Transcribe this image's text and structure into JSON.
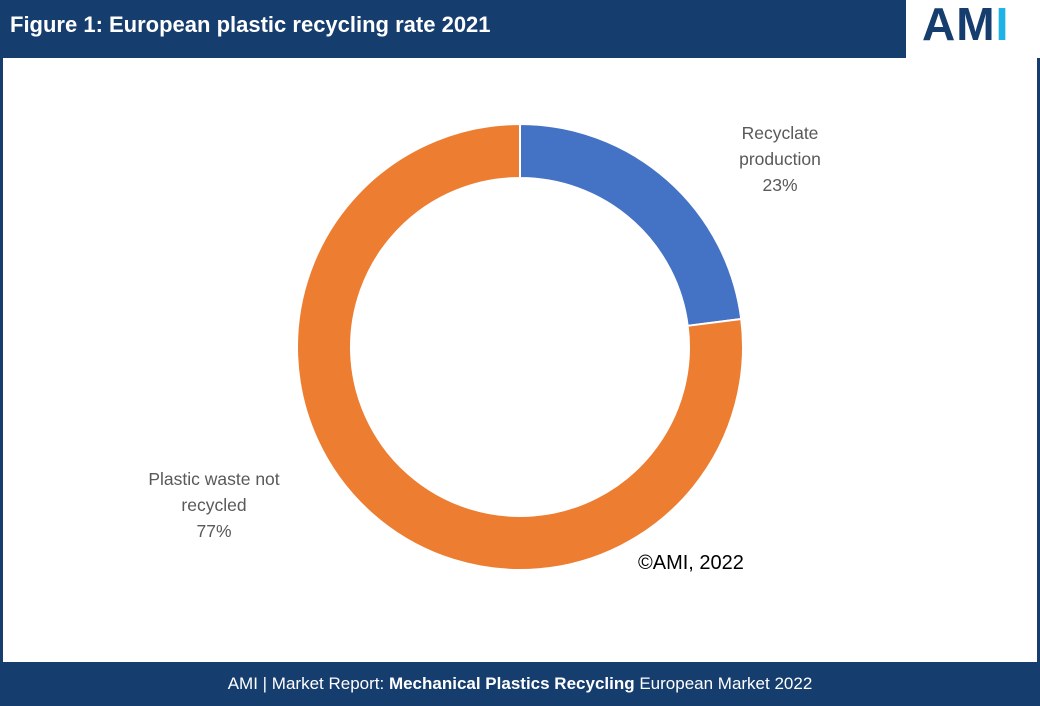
{
  "header": {
    "title": "Figure 1: European plastic recycling rate 2021"
  },
  "logo": {
    "letter_a": "A",
    "letter_m": "M",
    "letter_i": "I",
    "colors": {
      "dark": "#153d6d",
      "accent": "#1db3e6"
    }
  },
  "chart_data": {
    "type": "pie",
    "variant": "donut",
    "title": "Figure 1: European plastic recycling rate 2021",
    "slices": [
      {
        "name": "Recyclate production",
        "value": 23,
        "label": "23%",
        "color": "#4472c4"
      },
      {
        "name": "Plastic waste not recycled",
        "value": 77,
        "label": "77%",
        "color": "#ed7d31"
      }
    ],
    "labels": {
      "recycled": {
        "line1": "Recyclate",
        "line2": "production",
        "value": "23%"
      },
      "waste": {
        "line1": "Plastic waste not",
        "line2": "recycled",
        "value": "77%"
      }
    },
    "legend": "none"
  },
  "copyright": "©AMI, 2022",
  "footer": {
    "prefix": "AMI | Market Report: ",
    "bold": "Mechanical Plastics Recycling",
    "suffix": " European Market 2022"
  }
}
